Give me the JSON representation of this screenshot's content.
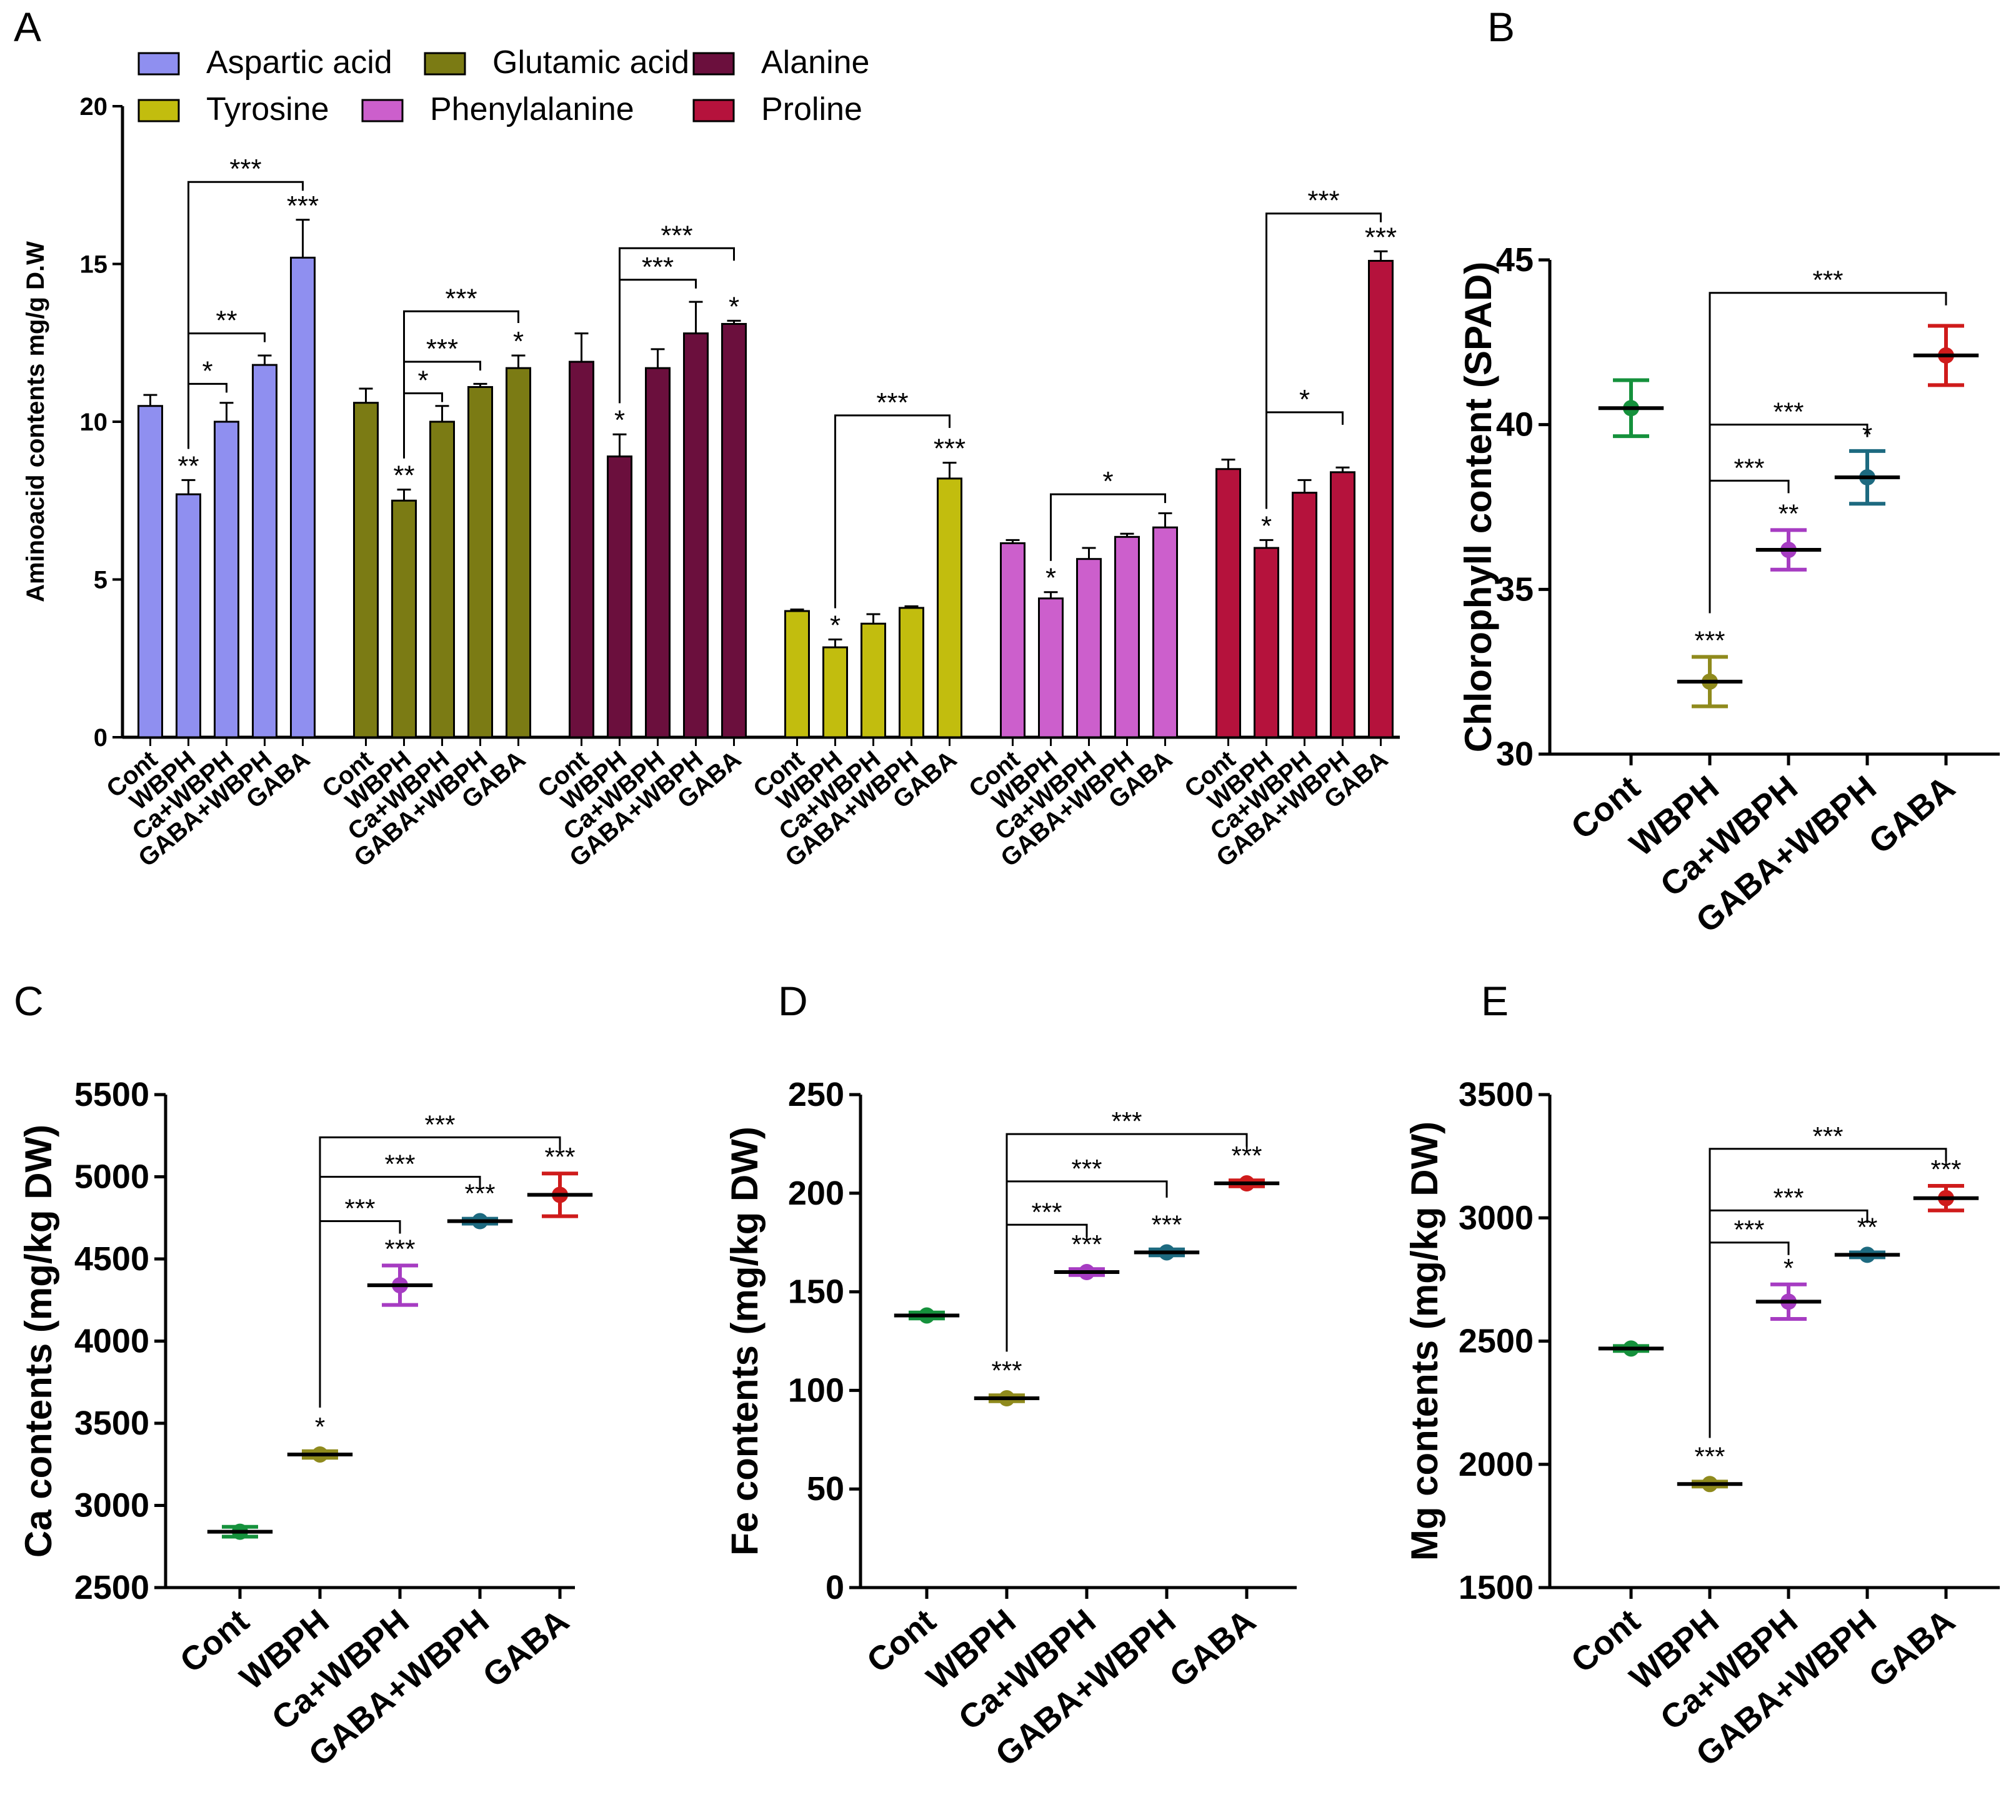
{
  "panels": {
    "A": "A",
    "B": "B",
    "C": "C",
    "D": "D",
    "E": "E"
  },
  "chart_data": [
    {
      "panel": "A",
      "type": "bar",
      "ylabel": "Aminoacid contents mg/g D.W",
      "ylim": [
        0,
        20
      ],
      "yticks": [
        "0",
        "5",
        "10",
        "15",
        "20"
      ],
      "categories": [
        "Cont",
        "WBPH",
        "Ca+WBPH",
        "GABA+WBPH",
        "GABA"
      ],
      "legend": [
        "Aspartic acid",
        "Glutamic acid",
        "Alanine",
        "Tyrosine",
        "Phenylalanine",
        "Proline"
      ],
      "series": [
        {
          "name": "Aspartic acid",
          "color": "#8f8ff0",
          "values": [
            10.5,
            7.7,
            10.0,
            11.8,
            15.2
          ],
          "errors": [
            0.35,
            0.45,
            0.6,
            0.3,
            1.2
          ],
          "marks": [
            "",
            "**",
            "",
            "",
            "***"
          ]
        },
        {
          "name": "Glutamic acid",
          "color": "#7b7b14",
          "values": [
            10.6,
            7.5,
            10.0,
            11.1,
            11.7
          ],
          "errors": [
            0.45,
            0.35,
            0.5,
            0.1,
            0.4
          ],
          "marks": [
            "",
            "**",
            "",
            "",
            "*"
          ]
        },
        {
          "name": "Alanine",
          "color": "#6b0f3d",
          "values": [
            11.9,
            8.9,
            11.7,
            12.8,
            13.1
          ],
          "errors": [
            0.9,
            0.7,
            0.6,
            1.0,
            0.1
          ],
          "marks": [
            "",
            "*",
            "",
            "",
            "*"
          ]
        },
        {
          "name": "Tyrosine",
          "color": "#c2bd0e",
          "values": [
            4.0,
            2.85,
            3.6,
            4.1,
            8.2
          ],
          "errors": [
            0.05,
            0.25,
            0.3,
            0.05,
            0.5
          ],
          "marks": [
            "",
            "*",
            "",
            "",
            "***"
          ]
        },
        {
          "name": "Phenylalanine",
          "color": "#cc5fcc",
          "values": [
            6.15,
            4.4,
            5.65,
            6.35,
            6.65
          ],
          "errors": [
            0.1,
            0.2,
            0.35,
            0.1,
            0.45
          ],
          "marks": [
            "",
            "*",
            "",
            "",
            ""
          ]
        },
        {
          "name": "Proline",
          "color": "#b5123c",
          "values": [
            8.5,
            6.0,
            7.75,
            8.4,
            15.1
          ],
          "errors": [
            0.3,
            0.25,
            0.4,
            0.15,
            0.3
          ],
          "marks": [
            "",
            "*",
            "",
            "",
            "***"
          ]
        }
      ],
      "brackets": [
        {
          "series": 0,
          "to": 4,
          "mark": "***",
          "y": 17.6
        },
        {
          "series": 0,
          "to": 3,
          "mark": "**",
          "y": 12.8
        },
        {
          "series": 0,
          "to": 2,
          "mark": "*",
          "y": 11.2
        },
        {
          "series": 1,
          "to": 4,
          "mark": "***",
          "y": 13.5
        },
        {
          "series": 1,
          "to": 3,
          "mark": "***",
          "y": 11.9
        },
        {
          "series": 1,
          "to": 2,
          "mark": "*",
          "y": 10.9
        },
        {
          "series": 2,
          "to": 4,
          "mark": "***",
          "y": 15.5
        },
        {
          "series": 2,
          "to": 3,
          "mark": "***",
          "y": 14.5
        },
        {
          "series": 3,
          "to": 4,
          "mark": "***",
          "y": 10.2
        },
        {
          "series": 4,
          "to": 4,
          "mark": "*",
          "y": 7.7
        },
        {
          "series": 5,
          "to": 4,
          "mark": "***",
          "y": 16.6
        },
        {
          "series": 5,
          "to": 3,
          "mark": "*",
          "y": 10.3
        }
      ]
    },
    {
      "panel": "B",
      "type": "scatter",
      "ylabel": "Chlorophyll content (SPAD)",
      "ylim": [
        30,
        45
      ],
      "yticks": [
        "30",
        "35",
        "40",
        "45"
      ],
      "categories": [
        "Cont",
        "WBPH",
        "Ca+WBPH",
        "GABA+WBPH",
        "GABA"
      ],
      "colors": [
        "#15913c",
        "#8f8a1d",
        "#a63cc2",
        "#1d6a80",
        "#cf1b1b"
      ],
      "values": [
        40.5,
        32.2,
        36.2,
        38.4,
        42.1
      ],
      "errors": [
        0.85,
        0.75,
        0.6,
        0.8,
        0.9
      ],
      "marks": [
        "",
        "***",
        "**",
        "*",
        ""
      ],
      "brackets": [
        {
          "to": 4,
          "mark": "***",
          "y": 44.0
        },
        {
          "to": 3,
          "mark": "***",
          "y": 40.0
        },
        {
          "to": 2,
          "mark": "***",
          "y": 38.3
        }
      ]
    },
    {
      "panel": "C",
      "type": "scatter",
      "ylabel": "Ca contents (mg/kg DW)",
      "ylim": [
        2500,
        5500
      ],
      "yticks": [
        "2500",
        "3000",
        "3500",
        "4000",
        "4500",
        "5000",
        "5500"
      ],
      "categories": [
        "Cont",
        "WBPH",
        "Ca+WBPH",
        "GABA+WBPH",
        "GABA"
      ],
      "colors": [
        "#15913c",
        "#8f8a1d",
        "#a63cc2",
        "#1d6a80",
        "#cf1b1b"
      ],
      "values": [
        2840,
        3310,
        4340,
        4730,
        4890
      ],
      "errors": [
        30,
        20,
        120,
        15,
        130
      ],
      "marks": [
        "",
        "*",
        "***",
        "***",
        "***"
      ],
      "brackets": [
        {
          "to": 4,
          "mark": "***",
          "y": 5240
        },
        {
          "to": 3,
          "mark": "***",
          "y": 5000
        },
        {
          "to": 2,
          "mark": "***",
          "y": 4730
        }
      ]
    },
    {
      "panel": "D",
      "type": "scatter",
      "ylabel": "Fe contents (mg/kg DW)",
      "ylim": [
        0,
        250
      ],
      "yticks": [
        "0",
        "50",
        "100",
        "150",
        "200",
        "250"
      ],
      "categories": [
        "Cont",
        "WBPH",
        "Ca+WBPH",
        "GABA+WBPH",
        "GABA"
      ],
      "colors": [
        "#15913c",
        "#8f8a1d",
        "#a63cc2",
        "#1d6a80",
        "#cf1b1b"
      ],
      "values": [
        138,
        96,
        160,
        170,
        205
      ],
      "errors": [
        1.5,
        1.5,
        1.5,
        1.5,
        1.5
      ],
      "marks": [
        "",
        "***",
        "***",
        "***",
        "***"
      ],
      "brackets": [
        {
          "to": 4,
          "mark": "***",
          "y": 230
        },
        {
          "to": 3,
          "mark": "***",
          "y": 206
        },
        {
          "to": 2,
          "mark": "***",
          "y": 184
        }
      ]
    },
    {
      "panel": "E",
      "type": "scatter",
      "ylabel": "Mg contents (mg/kg DW)",
      "ylim": [
        1500,
        3500
      ],
      "yticks": [
        "1500",
        "2000",
        "2500",
        "3000",
        "3500"
      ],
      "categories": [
        "Cont",
        "WBPH",
        "Ca+WBPH",
        "GABA+WBPH",
        "GABA"
      ],
      "colors": [
        "#15913c",
        "#8f8a1d",
        "#a63cc2",
        "#1d6a80",
        "#cf1b1b"
      ],
      "values": [
        2470,
        1920,
        2660,
        2850,
        3080
      ],
      "errors": [
        10,
        10,
        70,
        10,
        50
      ],
      "marks": [
        "",
        "***",
        "*",
        "**",
        "***"
      ],
      "brackets": [
        {
          "to": 4,
          "mark": "***",
          "y": 3280
        },
        {
          "to": 3,
          "mark": "***",
          "y": 3030
        },
        {
          "to": 2,
          "mark": "***",
          "y": 2900
        }
      ]
    }
  ]
}
